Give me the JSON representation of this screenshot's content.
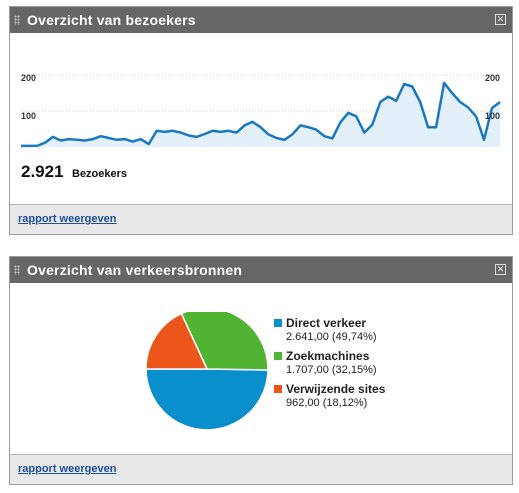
{
  "visitors_widget": {
    "title": "Overzicht van bezoekers",
    "total": "2.921",
    "total_label": "Bezoekers",
    "report_link": "rapport weergeven",
    "axis_labels": [
      "200",
      "100"
    ],
    "chart_data": {
      "type": "area",
      "ylim": [
        0,
        220
      ],
      "color": "#1a78c2",
      "values": [
        3,
        3,
        3,
        12,
        28,
        18,
        22,
        20,
        18,
        22,
        30,
        25,
        20,
        22,
        15,
        22,
        8,
        45,
        42,
        45,
        40,
        32,
        28,
        36,
        45,
        42,
        45,
        40,
        60,
        70,
        55,
        35,
        25,
        20,
        35,
        60,
        55,
        48,
        30,
        24,
        68,
        95,
        85,
        40,
        62,
        125,
        140,
        128,
        175,
        168,
        125,
        55,
        55,
        178,
        150,
        125,
        110,
        85,
        20,
        108,
        125
      ]
    }
  },
  "traffic_widget": {
    "title": "Overzicht van verkeersbronnen",
    "report_link": "rapport weergeven",
    "chart_data": {
      "type": "pie",
      "slices": [
        {
          "name": "Direct verkeer",
          "value": "2.641,00 (49,74%)",
          "percent": 49.74,
          "color": "#0a8fcd"
        },
        {
          "name": "Zoekmachines",
          "value": "1.707,00 (32,15%)",
          "percent": 32.15,
          "color": "#50b432"
        },
        {
          "name": "Verwijzende sites",
          "value": "962,00 (18,12%)",
          "percent": 18.12,
          "color": "#ed561b"
        }
      ]
    }
  }
}
